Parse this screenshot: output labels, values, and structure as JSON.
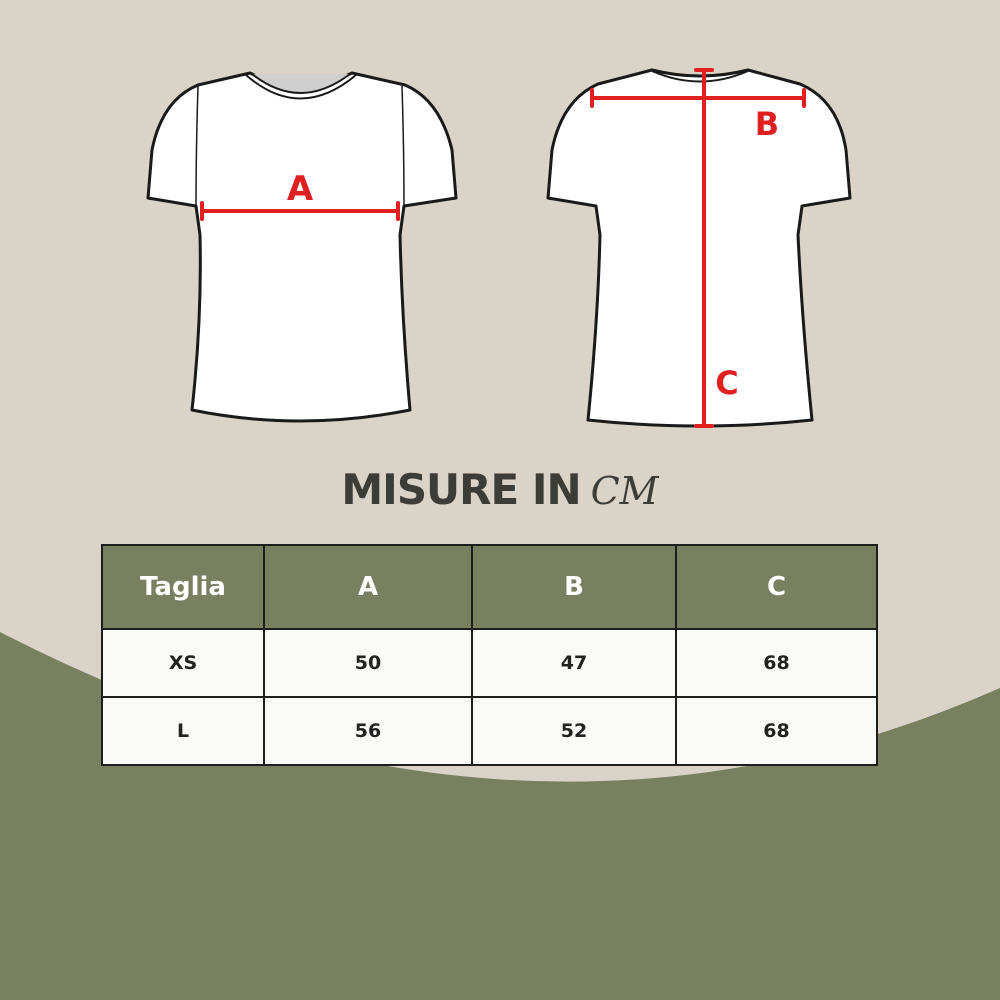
{
  "diagram": {
    "front_label": "A",
    "back_labels": [
      "B",
      "C"
    ],
    "colors": {
      "background": "#d9d3c8",
      "accent_green": "#788060",
      "measure_line": "#e02020",
      "text": "#3d3d38"
    }
  },
  "title": {
    "main": "MISURE IN",
    "unit": "CM"
  },
  "table": {
    "headers": [
      "Taglia",
      "A",
      "B",
      "C"
    ],
    "rows": [
      [
        "XS",
        "50",
        "47",
        "68"
      ],
      [
        "L",
        "56",
        "52",
        "68"
      ]
    ]
  }
}
